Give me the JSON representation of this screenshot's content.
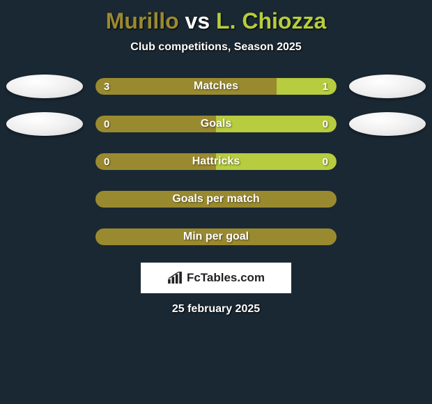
{
  "title": {
    "player1": "Murillo",
    "vs": "vs",
    "player2": "L. Chiozza",
    "player1_color": "#9a8a2f",
    "vs_color": "#ffffff",
    "player2_color": "#b7cc3e"
  },
  "subtitle": "Club competitions, Season 2025",
  "colors": {
    "left": "#9a8a2f",
    "right": "#b7cc3e",
    "neutral": "#9a8a2f",
    "background": "#1a2833"
  },
  "bars": [
    {
      "label": "Matches",
      "left_value": "3",
      "right_value": "1",
      "left_pct": 75,
      "right_pct": 25,
      "show_values": true,
      "show_left_avatar": true,
      "show_right_avatar": true
    },
    {
      "label": "Goals",
      "left_value": "0",
      "right_value": "0",
      "left_pct": 50,
      "right_pct": 50,
      "show_values": true,
      "show_left_avatar": true,
      "show_right_avatar": true
    },
    {
      "label": "Hattricks",
      "left_value": "0",
      "right_value": "0",
      "left_pct": 50,
      "right_pct": 50,
      "show_values": true,
      "show_left_avatar": false,
      "show_right_avatar": false
    },
    {
      "label": "Goals per match",
      "left_value": "",
      "right_value": "",
      "left_pct": 100,
      "right_pct": 0,
      "show_values": false,
      "show_left_avatar": false,
      "show_right_avatar": false,
      "solid": true
    },
    {
      "label": "Min per goal",
      "left_value": "",
      "right_value": "",
      "left_pct": 100,
      "right_pct": 0,
      "show_values": false,
      "show_left_avatar": false,
      "show_right_avatar": false,
      "solid": true
    }
  ],
  "logo": {
    "text": "FcTables.com"
  },
  "date": "25 february 2025"
}
